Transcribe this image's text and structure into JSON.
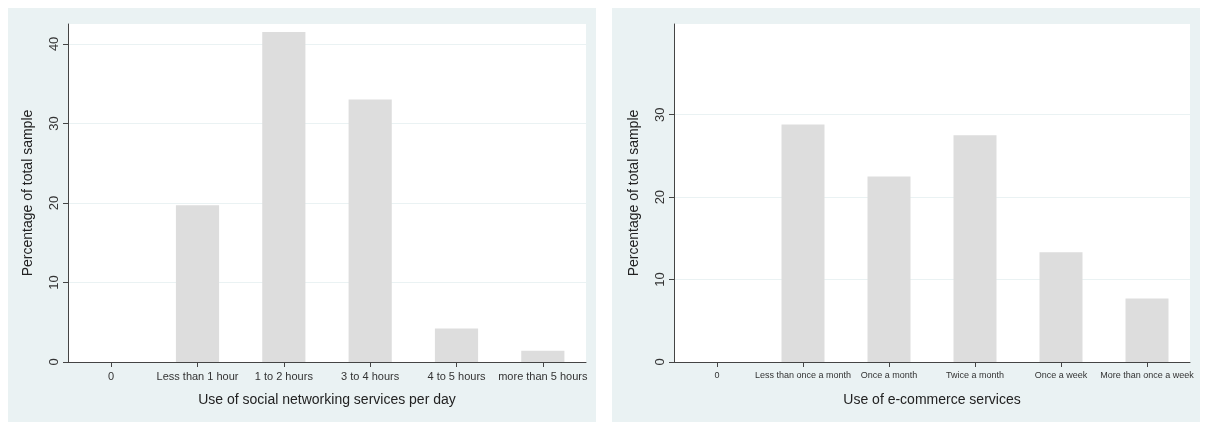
{
  "chart_data": [
    {
      "type": "bar",
      "xlabel": "Use of social networking services per day",
      "ylabel": "Percentage of total sample",
      "categories": [
        "0",
        "Less than 1 hour",
        "1 to 2 hours",
        "3 to 4 hours",
        "4 to 5 hours",
        "more than 5 hours"
      ],
      "values": [
        null,
        19.7,
        41.5,
        33.0,
        4.2,
        1.4
      ],
      "color": "#dddddd",
      "ylim": [
        0,
        42.5
      ],
      "yticks": [
        0,
        10,
        20,
        30,
        40
      ],
      "grid": "y"
    },
    {
      "type": "bar",
      "xlabel": "Use of e-commerce services",
      "ylabel": "Percentage of total sample",
      "categories": [
        "0",
        "Less than once a month",
        "Once a month",
        "Twice a month",
        "Once a week",
        "More than once a week"
      ],
      "values": [
        null,
        28.8,
        22.5,
        27.5,
        13.3,
        7.7
      ],
      "color": "#dddddd",
      "ylim": [
        0,
        41
      ],
      "yticks": [
        0,
        10,
        20,
        30
      ],
      "grid": "y"
    }
  ]
}
